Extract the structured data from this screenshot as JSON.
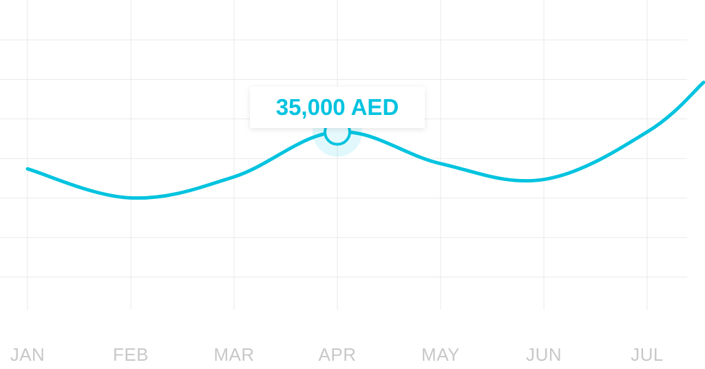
{
  "chart_data": {
    "type": "line",
    "categories": [
      "JAN",
      "FEB",
      "MAR",
      "APR",
      "MAY",
      "JUN",
      "JUL"
    ],
    "series": [
      {
        "values": [
          28000,
          22500,
          26500,
          35000,
          29000,
          26000,
          35000
        ],
        "color": "#00c3df"
      }
    ],
    "ylim": [
      0,
      60000
    ],
    "grid": true,
    "highlight": {
      "category": "APR",
      "value": 35000,
      "label": "35,000 AED"
    },
    "colors": {
      "line": "#00c3df",
      "grid": "#e9e9e9",
      "tick_label": "#c8c8c8"
    }
  }
}
